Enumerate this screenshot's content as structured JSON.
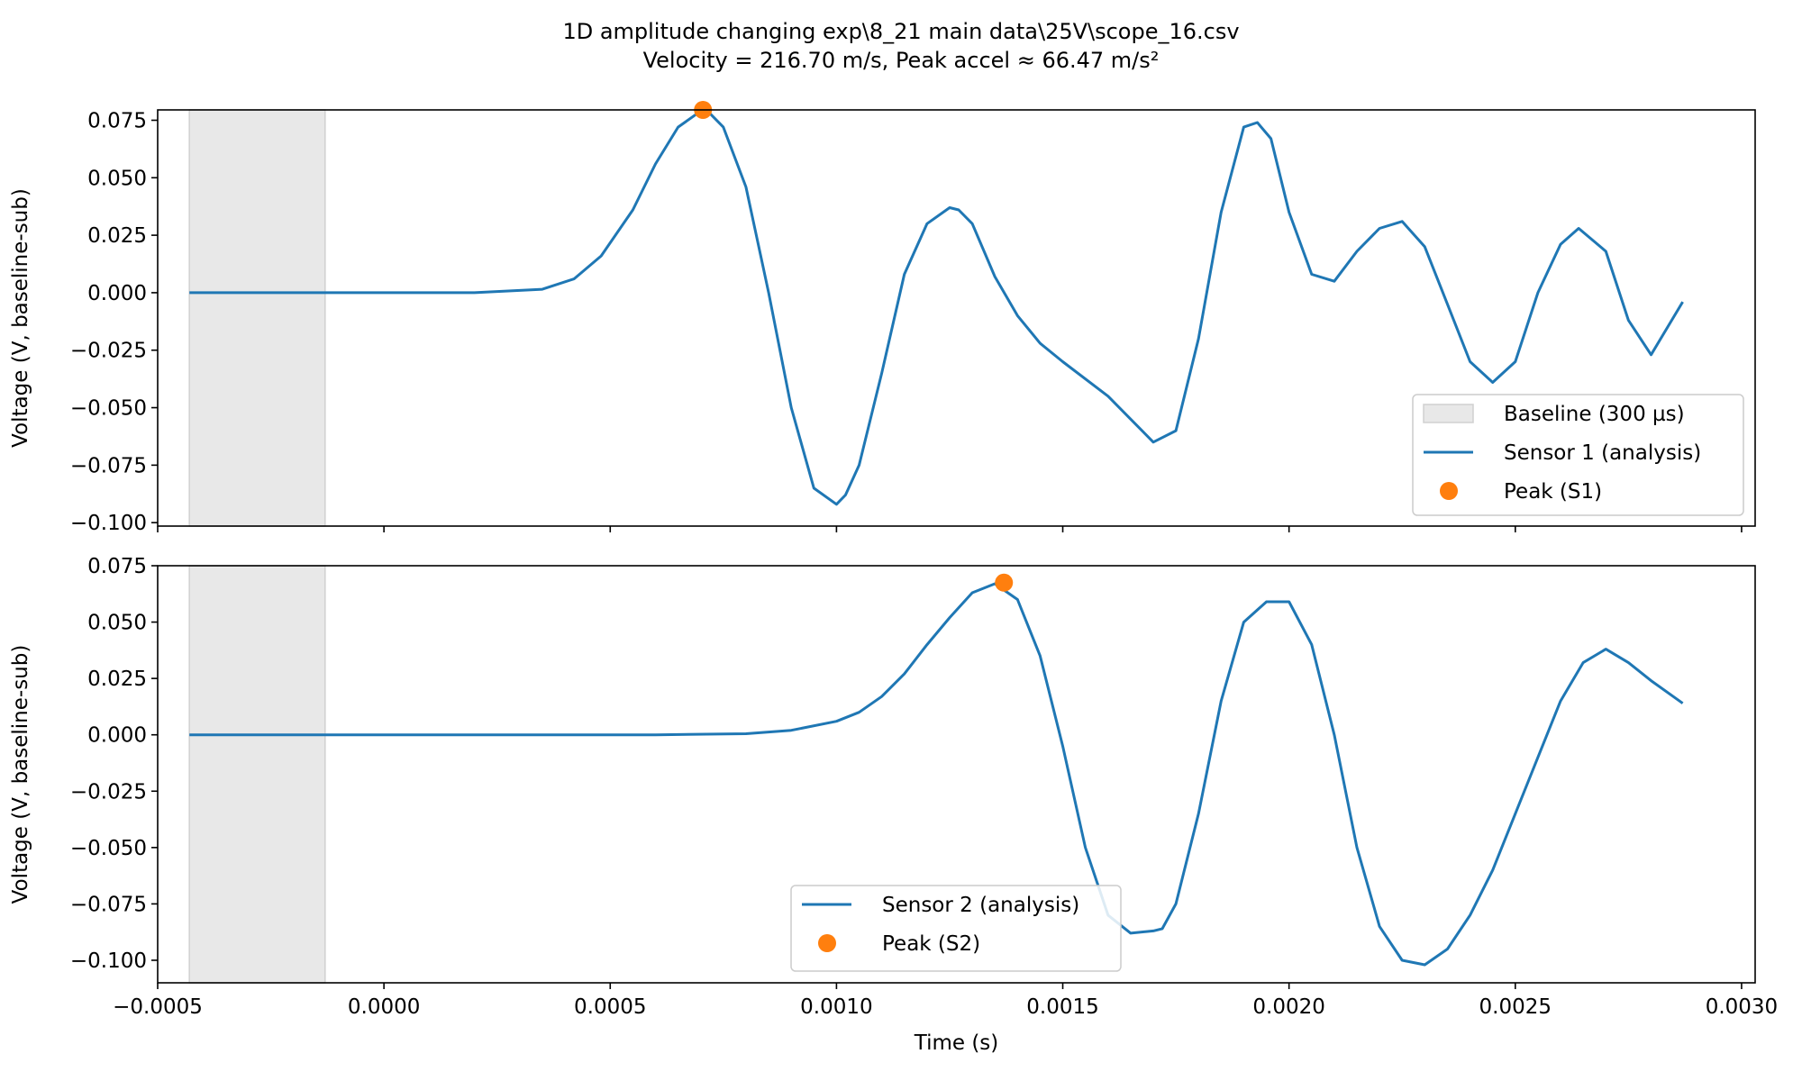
{
  "figure": {
    "title_line1": "1D amplitude changing exp\\8_21 main data\\25V\\scope_16.csv",
    "title_line2": "Velocity = 216.70 m/s, Peak accel ≈ 66.47 m/s²"
  },
  "colors": {
    "series": "#1f77b4",
    "peak": "#ff7f0e",
    "baseline_fill": "#e8e8e8",
    "baseline_edge": "#d0d0d0",
    "axes": "#000000"
  },
  "chart_data": [
    {
      "type": "line",
      "xlabel": "",
      "ylabel": "Voltage (V, baseline-sub)",
      "xlim": [
        -0.0005,
        0.00303
      ],
      "ylim": [
        -0.1015,
        0.0795
      ],
      "xticks": [
        -0.0005,
        0.0,
        0.0005,
        0.001,
        0.0015,
        0.002,
        0.0025,
        0.003
      ],
      "xtick_labels": [],
      "yticks": [
        0.075,
        0.05,
        0.025,
        0.0,
        -0.025,
        -0.05,
        -0.075,
        -0.1
      ],
      "ytick_labels": [
        "0.075",
        "0.050",
        "0.025",
        "0.000",
        "−0.025",
        "−0.050",
        "−0.075",
        "−0.100"
      ],
      "grid": false,
      "legend_position": "lower-right",
      "baseline_span": {
        "label": "Baseline (300 µs)",
        "x": [
          -0.00043,
          -0.00013
        ]
      },
      "series": [
        {
          "name": "Sensor 1 (analysis)",
          "x": [
            -0.00043,
            -0.0002,
            0.0,
            0.0002,
            0.00035,
            0.00042,
            0.00048,
            0.00055,
            0.0006,
            0.00065,
            0.0007,
            0.00072,
            0.00075,
            0.0008,
            0.00085,
            0.0009,
            0.00095,
            0.001,
            0.00102,
            0.00105,
            0.0011,
            0.00115,
            0.0012,
            0.00125,
            0.00127,
            0.0013,
            0.00135,
            0.0014,
            0.00145,
            0.0015,
            0.0016,
            0.00165,
            0.0017,
            0.00175,
            0.0018,
            0.00185,
            0.0019,
            0.00193,
            0.00196,
            0.002,
            0.00205,
            0.0021,
            0.00215,
            0.0022,
            0.00225,
            0.0023,
            0.00235,
            0.0024,
            0.00245,
            0.0025,
            0.00255,
            0.0026,
            0.00264,
            0.0027,
            0.00275,
            0.0028,
            0.00287
          ],
          "values": [
            0.0,
            0.0,
            0.0,
            0.0,
            0.0015,
            0.006,
            0.016,
            0.036,
            0.056,
            0.072,
            0.079,
            0.078,
            0.072,
            0.046,
            0.0,
            -0.05,
            -0.085,
            -0.092,
            -0.088,
            -0.075,
            -0.035,
            0.008,
            0.03,
            0.037,
            0.036,
            0.03,
            0.007,
            -0.01,
            -0.022,
            -0.03,
            -0.045,
            -0.055,
            -0.065,
            -0.06,
            -0.02,
            0.035,
            0.072,
            0.074,
            0.067,
            0.035,
            0.008,
            0.005,
            0.018,
            0.028,
            0.031,
            0.02,
            -0.005,
            -0.03,
            -0.039,
            -0.03,
            0.0,
            0.021,
            0.028,
            0.018,
            -0.012,
            -0.027,
            -0.004
          ]
        },
        {
          "name": "Peak (S1)",
          "marker": "circle",
          "x": [
            0.000705
          ],
          "values": [
            0.0795
          ]
        }
      ]
    },
    {
      "type": "line",
      "xlabel": "Time (s)",
      "ylabel": "Voltage (V, baseline-sub)",
      "xlim": [
        -0.0005,
        0.00303
      ],
      "ylim": [
        -0.11,
        0.075
      ],
      "xticks": [
        -0.0005,
        0.0,
        0.0005,
        0.001,
        0.0015,
        0.002,
        0.0025,
        0.003
      ],
      "xtick_labels": [
        "−0.0005",
        "0.0000",
        "0.0005",
        "0.0010",
        "0.0015",
        "0.0020",
        "0.0025",
        "0.0030"
      ],
      "yticks": [
        0.075,
        0.05,
        0.025,
        0.0,
        -0.025,
        -0.05,
        -0.075,
        -0.1
      ],
      "ytick_labels": [
        "0.075",
        "0.050",
        "0.025",
        "0.000",
        "−0.025",
        "−0.050",
        "−0.075",
        "−0.100"
      ],
      "grid": false,
      "legend_position": "lower-center",
      "baseline_span": {
        "label": "",
        "x": [
          -0.00043,
          -0.00013
        ]
      },
      "series": [
        {
          "name": "Sensor 2 (analysis)",
          "x": [
            -0.00043,
            -0.0002,
            0.0,
            0.0002,
            0.0004,
            0.0006,
            0.0008,
            0.0009,
            0.001,
            0.00105,
            0.0011,
            0.00115,
            0.0012,
            0.00125,
            0.0013,
            0.00135,
            0.0014,
            0.00145,
            0.0015,
            0.00155,
            0.0016,
            0.00165,
            0.0017,
            0.00172,
            0.00175,
            0.0018,
            0.00185,
            0.0019,
            0.00195,
            0.002,
            0.00205,
            0.0021,
            0.00215,
            0.0022,
            0.00225,
            0.0023,
            0.00235,
            0.0024,
            0.00245,
            0.0025,
            0.00255,
            0.0026,
            0.00265,
            0.0027,
            0.00275,
            0.0028,
            0.00287
          ],
          "values": [
            0.0,
            0.0,
            0.0,
            0.0,
            0.0,
            0.0,
            0.0005,
            0.002,
            0.006,
            0.01,
            0.017,
            0.027,
            0.04,
            0.052,
            0.063,
            0.067,
            0.06,
            0.035,
            -0.005,
            -0.05,
            -0.08,
            -0.088,
            -0.087,
            -0.086,
            -0.075,
            -0.035,
            0.015,
            0.05,
            0.059,
            0.059,
            0.04,
            0.0,
            -0.05,
            -0.085,
            -0.1,
            -0.102,
            -0.095,
            -0.08,
            -0.06,
            -0.035,
            -0.01,
            0.015,
            0.032,
            0.038,
            0.032,
            0.024,
            0.014
          ]
        },
        {
          "name": "Peak (S2)",
          "marker": "circle",
          "x": [
            0.00137
          ],
          "values": [
            0.0675
          ]
        }
      ]
    }
  ]
}
